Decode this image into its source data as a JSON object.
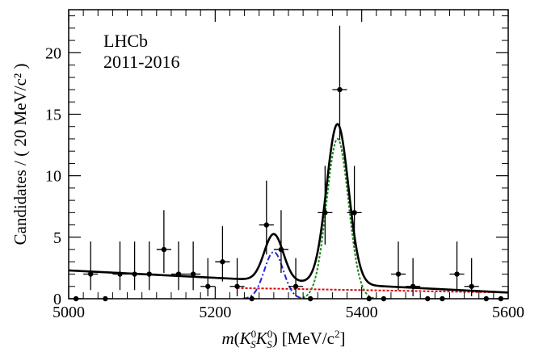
{
  "chart_data": {
    "type": "scatter",
    "experiment_label": "LHCb",
    "period_label": "2011-2016",
    "ylabel": "Candidates / ( 20 MeV/c² )",
    "xlabel": {
      "var": "m",
      "open": "(",
      "k1": "K",
      "k1_sup": "0",
      "k1_sub": "S",
      "k2": "K",
      "k2_sup": "0",
      "k2_sub": "S",
      "close": ")",
      "unit": "[MeV/c",
      "unit_sup": "2",
      "unit_close": "]"
    },
    "xlim": [
      5000,
      5600
    ],
    "ylim": [
      0,
      23.5
    ],
    "x_ticks": [
      "5000",
      "5200",
      "5400",
      "5600"
    ],
    "y_ticks": [
      "0",
      "5",
      "10",
      "15",
      "20"
    ],
    "data": [
      {
        "x": 5010,
        "y": 0,
        "up": 0,
        "down": 0
      },
      {
        "x": 5030,
        "y": 2,
        "up": 2.65,
        "down": 1.3
      },
      {
        "x": 5050,
        "y": 0,
        "up": 0,
        "down": 0
      },
      {
        "x": 5070,
        "y": 2,
        "up": 2.65,
        "down": 1.3
      },
      {
        "x": 5090,
        "y": 2,
        "up": 2.65,
        "down": 1.3
      },
      {
        "x": 5110,
        "y": 2,
        "up": 2.65,
        "down": 1.3
      },
      {
        "x": 5130,
        "y": 4,
        "up": 3.2,
        "down": 1.9
      },
      {
        "x": 5150,
        "y": 2,
        "up": 2.65,
        "down": 1.3
      },
      {
        "x": 5170,
        "y": 2,
        "up": 2.65,
        "down": 1.3
      },
      {
        "x": 5190,
        "y": 1,
        "up": 2.3,
        "down": 0.8
      },
      {
        "x": 5210,
        "y": 3,
        "up": 2.9,
        "down": 1.6
      },
      {
        "x": 5230,
        "y": 1,
        "up": 2.3,
        "down": 0.8
      },
      {
        "x": 5250,
        "y": 0,
        "up": 0,
        "down": 0
      },
      {
        "x": 5270,
        "y": 6,
        "up": 3.6,
        "down": 2.4
      },
      {
        "x": 5290,
        "y": 4,
        "up": 3.2,
        "down": 1.9
      },
      {
        "x": 5310,
        "y": 1,
        "up": 2.3,
        "down": 0.8
      },
      {
        "x": 5330,
        "y": 0,
        "up": 0,
        "down": 0
      },
      {
        "x": 5350,
        "y": 7,
        "up": 3.8,
        "down": 2.6
      },
      {
        "x": 5370,
        "y": 17,
        "up": 5.2,
        "down": 4.1
      },
      {
        "x": 5390,
        "y": 7,
        "up": 3.8,
        "down": 2.6
      },
      {
        "x": 5410,
        "y": 0,
        "up": 0,
        "down": 0
      },
      {
        "x": 5430,
        "y": 0,
        "up": 0,
        "down": 0
      },
      {
        "x": 5450,
        "y": 2,
        "up": 2.65,
        "down": 1.3
      },
      {
        "x": 5470,
        "y": 1,
        "up": 2.3,
        "down": 0.8
      },
      {
        "x": 5490,
        "y": 0,
        "up": 0,
        "down": 0
      },
      {
        "x": 5510,
        "y": 0,
        "up": 0,
        "down": 0
      },
      {
        "x": 5530,
        "y": 2,
        "up": 2.65,
        "down": 1.3
      },
      {
        "x": 5550,
        "y": 1,
        "up": 2.3,
        "down": 0.8
      },
      {
        "x": 5570,
        "y": 0,
        "up": 0,
        "down": 0
      },
      {
        "x": 5590,
        "y": 0,
        "up": 0,
        "down": 0
      }
    ],
    "components": [
      {
        "id": "total",
        "color": "#000000",
        "style": "solid",
        "bg_at_5000": 2.3,
        "bg_slope": -0.003,
        "peaks": [
          {
            "mean": 5280,
            "sigma": 13,
            "amp": 3.8
          },
          {
            "mean": 5367,
            "sigma": 15,
            "amp": 13.0
          }
        ]
      },
      {
        "id": "bd-signal",
        "color": "#2222dd",
        "style": "dashdot",
        "peaks": [
          {
            "mean": 5280,
            "sigma": 13,
            "amp": 3.8
          }
        ]
      },
      {
        "id": "bs-signal",
        "color": "#1a8a1a",
        "style": "dotted",
        "peaks": [
          {
            "mean": 5367,
            "sigma": 15,
            "amp": 13.0
          }
        ]
      },
      {
        "id": "combinatorial",
        "color": "#e00000",
        "style": "dotted",
        "bg_at_5000": 1.1,
        "bg_slope": -0.001,
        "from": 5230
      }
    ]
  }
}
